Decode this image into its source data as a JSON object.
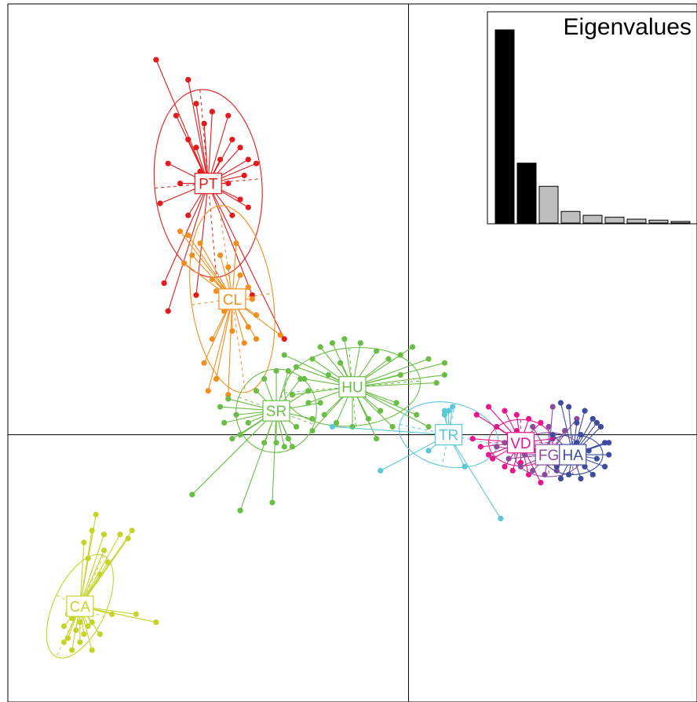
{
  "chart_data": {
    "type": "scatter",
    "title": "",
    "xlabel": "",
    "ylabel": "",
    "xlim": [
      -1.0,
      0.72
    ],
    "ylim": [
      -0.67,
      1.08
    ],
    "axes_at_origin": true,
    "grid": false,
    "legend": "none",
    "groups": [
      {
        "name": "PT",
        "color": "#E41A1C",
        "centroid": [
          -0.5,
          0.63
        ],
        "ellipse": {
          "rx": 0.134,
          "ry": 0.236,
          "angle": -5
        },
        "points": [
          [
            -0.63,
            0.94
          ],
          [
            -0.55,
            0.89
          ],
          [
            -0.53,
            0.83
          ],
          [
            -0.58,
            0.8
          ],
          [
            -0.51,
            0.78
          ],
          [
            -0.49,
            0.81
          ],
          [
            -0.45,
            0.8
          ],
          [
            -0.55,
            0.74
          ],
          [
            -0.53,
            0.72
          ],
          [
            -0.44,
            0.74
          ],
          [
            -0.42,
            0.72
          ],
          [
            -0.4,
            0.69
          ],
          [
            -0.38,
            0.68
          ],
          [
            -0.6,
            0.68
          ],
          [
            -0.52,
            0.66
          ],
          [
            -0.47,
            0.69
          ],
          [
            -0.41,
            0.65
          ],
          [
            -0.57,
            0.63
          ],
          [
            -0.45,
            0.63
          ],
          [
            -0.62,
            0.58
          ],
          [
            -0.42,
            0.59
          ],
          [
            -0.4,
            0.57
          ],
          [
            -0.44,
            0.55
          ],
          [
            -0.55,
            0.55
          ],
          [
            -0.61,
            0.38
          ],
          [
            -0.6,
            0.31
          ],
          [
            -0.53,
            0.35
          ],
          [
            -0.39,
            0.35
          ],
          [
            -0.31,
            0.24
          ]
        ]
      },
      {
        "name": "CL",
        "color": "#F28E1C",
        "centroid": [
          -0.44,
          0.34
        ],
        "ellipse": {
          "rx": 0.102,
          "ry": 0.236,
          "angle": -8
        },
        "points": [
          [
            -0.57,
            0.51
          ],
          [
            -0.55,
            0.5
          ],
          [
            -0.52,
            0.48
          ],
          [
            -0.54,
            0.45
          ],
          [
            -0.56,
            0.43
          ],
          [
            -0.43,
            0.48
          ],
          [
            -0.47,
            0.45
          ],
          [
            -0.45,
            0.42
          ],
          [
            -0.42,
            0.4
          ],
          [
            -0.49,
            0.39
          ],
          [
            -0.4,
            0.37
          ],
          [
            -0.39,
            0.34
          ],
          [
            -0.48,
            0.36
          ],
          [
            -0.46,
            0.31
          ],
          [
            -0.38,
            0.3
          ],
          [
            -0.4,
            0.27
          ],
          [
            -0.44,
            0.26
          ],
          [
            -0.49,
            0.24
          ],
          [
            -0.51,
            0.18
          ],
          [
            -0.48,
            0.14
          ],
          [
            -0.5,
            0.11
          ],
          [
            -0.41,
            0.23
          ],
          [
            -0.38,
            0.24
          ],
          [
            -0.32,
            0.25
          ],
          [
            -0.45,
            0.1
          ]
        ]
      },
      {
        "name": "HU",
        "color": "#6ABE45",
        "centroid": [
          -0.14,
          0.12
        ],
        "ellipse": {
          "rx": 0.17,
          "ry": 0.098,
          "angle": -5
        },
        "points": [
          [
            -0.31,
            0.2
          ],
          [
            -0.28,
            0.17
          ],
          [
            -0.26,
            0.14
          ],
          [
            -0.29,
            0.1
          ],
          [
            -0.25,
            0.08
          ],
          [
            -0.22,
            0.22
          ],
          [
            -0.19,
            0.23
          ],
          [
            -0.16,
            0.24
          ],
          [
            -0.12,
            0.23
          ],
          [
            -0.08,
            0.21
          ],
          [
            -0.05,
            0.19
          ],
          [
            -0.02,
            0.2
          ],
          [
            0.01,
            0.22
          ],
          [
            0.05,
            0.19
          ],
          [
            0.09,
            0.18
          ],
          [
            0.07,
            0.13
          ],
          [
            0.09,
            0.15
          ],
          [
            -0.03,
            0.08
          ],
          [
            -0.07,
            0.06
          ],
          [
            -0.1,
            0.04
          ],
          [
            -0.14,
            0.02
          ],
          [
            -0.18,
            0.03
          ],
          [
            -0.21,
            0.05
          ],
          [
            -0.24,
            0.01
          ],
          [
            -0.08,
            -0.01
          ],
          [
            -0.04,
            0.02
          ],
          [
            0.02,
            0.05
          ],
          [
            0.05,
            0.02
          ],
          [
            -0.2,
            0.15
          ],
          [
            -0.17,
            0.18
          ],
          [
            -0.24,
            0.19
          ],
          [
            -0.02,
            0.15
          ]
        ]
      },
      {
        "name": "SR",
        "color": "#6ABE45",
        "centroid": [
          -0.33,
          0.06
        ],
        "ellipse": {
          "rx": 0.1,
          "ry": 0.105,
          "angle": 20
        },
        "points": [
          [
            -0.47,
            0.07
          ],
          [
            -0.45,
            0.09
          ],
          [
            -0.43,
            0.05
          ],
          [
            -0.4,
            0.03
          ],
          [
            -0.42,
            0.0
          ],
          [
            -0.38,
            0.11
          ],
          [
            -0.36,
            0.14
          ],
          [
            -0.33,
            0.16
          ],
          [
            -0.3,
            0.16
          ],
          [
            -0.27,
            0.14
          ],
          [
            -0.25,
            0.11
          ],
          [
            -0.22,
            0.08
          ],
          [
            -0.24,
            0.04
          ],
          [
            -0.28,
            0.02
          ],
          [
            -0.3,
            -0.01
          ],
          [
            -0.33,
            -0.02
          ],
          [
            -0.36,
            -0.02
          ],
          [
            -0.31,
            -0.03
          ],
          [
            -0.29,
            -0.03
          ],
          [
            -0.46,
            0.03
          ],
          [
            -0.44,
            -0.01
          ],
          [
            -0.54,
            -0.15
          ],
          [
            -0.42,
            -0.19
          ],
          [
            -0.34,
            -0.17
          ]
        ]
      },
      {
        "name": "TR",
        "color": "#5BC8D8",
        "centroid": [
          0.1,
          0.0
        ],
        "ellipse": {
          "rx": 0.125,
          "ry": 0.08,
          "angle": 12
        },
        "points": [
          [
            0.09,
            0.06
          ],
          [
            0.1,
            0.06
          ],
          [
            0.11,
            0.07
          ],
          [
            0.09,
            0.05
          ],
          [
            0.12,
            -0.02
          ],
          [
            0.05,
            -0.04
          ],
          [
            -0.19,
            0.02
          ],
          [
            -0.07,
            -0.09
          ],
          [
            0.23,
            -0.21
          ],
          [
            0.14,
            -0.08
          ]
        ]
      },
      {
        "name": "VD",
        "color": "#E8168C",
        "centroid": [
          0.28,
          -0.02
        ],
        "ellipse": {
          "rx": 0.08,
          "ry": 0.058,
          "angle": 0
        },
        "points": [
          [
            0.17,
            0.05
          ],
          [
            0.2,
            0.07
          ],
          [
            0.24,
            0.06
          ],
          [
            0.27,
            0.05
          ],
          [
            0.3,
            0.04
          ],
          [
            0.33,
            0.03
          ],
          [
            0.32,
            -0.04
          ],
          [
            0.28,
            -0.07
          ],
          [
            0.24,
            -0.08
          ],
          [
            0.21,
            -0.06
          ],
          [
            0.18,
            -0.03
          ],
          [
            0.16,
            -0.01
          ],
          [
            0.2,
            -0.05
          ],
          [
            0.26,
            -0.09
          ],
          [
            0.3,
            -0.1
          ],
          [
            0.33,
            -0.12
          ],
          [
            0.35,
            -0.05
          ],
          [
            0.22,
            0.02
          ],
          [
            0.27,
            0.01
          ],
          [
            0.36,
            -0.01
          ]
        ]
      },
      {
        "name": "FG",
        "color": "#8D4BA0",
        "centroid": [
          0.35,
          -0.05
        ],
        "ellipse": {
          "rx": 0.085,
          "ry": 0.055,
          "angle": 0
        },
        "points": [
          [
            0.22,
            -0.03
          ],
          [
            0.25,
            -0.06
          ],
          [
            0.28,
            -0.08
          ],
          [
            0.31,
            -0.09
          ],
          [
            0.34,
            -0.1
          ],
          [
            0.37,
            -0.09
          ],
          [
            0.4,
            -0.07
          ],
          [
            0.41,
            -0.03
          ],
          [
            0.39,
            0.01
          ],
          [
            0.35,
            0.02
          ],
          [
            0.31,
            0.02
          ],
          [
            0.27,
            0.0
          ],
          [
            0.24,
            -0.02
          ],
          [
            0.29,
            -0.05
          ],
          [
            0.33,
            -0.06
          ],
          [
            0.38,
            -0.05
          ],
          [
            0.42,
            0.04
          ],
          [
            0.36,
            0.07
          ]
        ]
      },
      {
        "name": "HA",
        "color": "#3E4CA0",
        "centroid": [
          0.41,
          -0.05
        ],
        "ellipse": {
          "rx": 0.075,
          "ry": 0.05,
          "angle": 0
        },
        "points": [
          [
            0.38,
            0.08
          ],
          [
            0.4,
            0.07
          ],
          [
            0.44,
            0.06
          ],
          [
            0.46,
            0.04
          ],
          [
            0.48,
            0.02
          ],
          [
            0.49,
            -0.02
          ],
          [
            0.5,
            -0.05
          ],
          [
            0.49,
            -0.08
          ],
          [
            0.46,
            -0.1
          ],
          [
            0.43,
            -0.11
          ],
          [
            0.4,
            -0.1
          ],
          [
            0.37,
            -0.08
          ],
          [
            0.35,
            -0.06
          ],
          [
            0.34,
            -0.03
          ],
          [
            0.36,
            0.0
          ],
          [
            0.42,
            -0.02
          ],
          [
            0.45,
            -0.04
          ],
          [
            0.47,
            -0.06
          ],
          [
            0.44,
            -0.08
          ],
          [
            0.41,
            -0.06
          ],
          [
            0.39,
            -0.04
          ],
          [
            0.43,
            0.0
          ],
          [
            0.47,
            0.03
          ],
          [
            0.5,
            -0.02
          ],
          [
            0.42,
            0.03
          ],
          [
            0.38,
            -0.11
          ]
        ]
      },
      {
        "name": "CA",
        "color": "#C6D428",
        "centroid": [
          -0.82,
          -0.43
        ],
        "ellipse": {
          "rx": 0.065,
          "ry": 0.14,
          "angle": 25
        },
        "points": [
          [
            -0.78,
            -0.2
          ],
          [
            -0.79,
            -0.24
          ],
          [
            -0.81,
            -0.27
          ],
          [
            -0.76,
            -0.25
          ],
          [
            -0.76,
            -0.29
          ],
          [
            -0.8,
            -0.31
          ],
          [
            -0.75,
            -0.32
          ],
          [
            -0.72,
            -0.25
          ],
          [
            -0.7,
            -0.26
          ],
          [
            -0.69,
            -0.24
          ],
          [
            -0.77,
            -0.35
          ],
          [
            -0.85,
            -0.45
          ],
          [
            -0.84,
            -0.46
          ],
          [
            -0.82,
            -0.47
          ],
          [
            -0.8,
            -0.48
          ],
          [
            -0.86,
            -0.48
          ],
          [
            -0.83,
            -0.49
          ],
          [
            -0.81,
            -0.5
          ],
          [
            -0.85,
            -0.51
          ],
          [
            -0.82,
            -0.52
          ],
          [
            -0.86,
            -0.52
          ],
          [
            -0.84,
            -0.54
          ],
          [
            -0.79,
            -0.54
          ],
          [
            -0.77,
            -0.5
          ],
          [
            -0.79,
            -0.47
          ],
          [
            -0.74,
            -0.45
          ],
          [
            -0.68,
            -0.45
          ],
          [
            -0.63,
            -0.47
          ]
        ]
      }
    ],
    "eigenvalues": {
      "title": "Eigenvalues",
      "values": [
        1.0,
        0.31,
        0.19,
        0.06,
        0.04,
        0.03,
        0.02,
        0.015,
        0.008
      ],
      "highlighted": 2,
      "colors": {
        "highlighted": "#000000",
        "other": "#BEBEBE"
      }
    }
  }
}
